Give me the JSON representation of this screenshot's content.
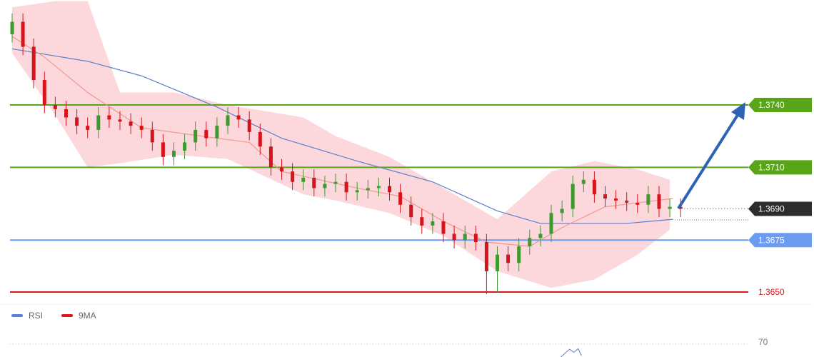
{
  "chart_data": {
    "type": "candlestick",
    "ylim": [
      1.36445,
      1.37905
    ],
    "candles": {
      "open": [
        1.3774,
        1.378,
        1.3768,
        1.3752,
        1.374,
        1.3738,
        1.3734,
        1.373,
        1.3728,
        1.3735,
        1.3733,
        1.3732,
        1.373,
        1.3728,
        1.3722,
        1.3715,
        1.3718,
        1.3722,
        1.3728,
        1.3724,
        1.373,
        1.3735,
        1.3733,
        1.3727,
        1.372,
        1.371,
        1.3708,
        1.3703,
        1.3705,
        1.37,
        1.3702,
        1.3703,
        1.3698,
        1.3699,
        1.37,
        1.3701,
        1.3698,
        1.3692,
        1.3686,
        1.3682,
        1.3684,
        1.3678,
        1.3675,
        1.3678,
        1.3674,
        1.366,
        1.3668,
        1.3664,
        1.3672,
        1.3676,
        1.3678,
        1.3688,
        1.369,
        1.3702,
        1.3704,
        1.3697,
        1.3695,
        1.3694,
        1.3693,
        1.3692,
        1.3697,
        1.369,
        1.3691
      ],
      "high": [
        1.3784,
        1.3784,
        1.3772,
        1.3756,
        1.3744,
        1.3742,
        1.3738,
        1.3734,
        1.3739,
        1.3739,
        1.3737,
        1.3736,
        1.3734,
        1.3732,
        1.3726,
        1.3722,
        1.3726,
        1.3732,
        1.3732,
        1.3734,
        1.3739,
        1.3739,
        1.3737,
        1.3731,
        1.3724,
        1.3714,
        1.3712,
        1.3709,
        1.3709,
        1.3706,
        1.3707,
        1.3707,
        1.3703,
        1.3704,
        1.3705,
        1.3705,
        1.3702,
        1.3696,
        1.369,
        1.3688,
        1.3688,
        1.3682,
        1.3682,
        1.3682,
        1.3678,
        1.3672,
        1.3672,
        1.3676,
        1.368,
        1.3682,
        1.3692,
        1.3694,
        1.3706,
        1.3708,
        1.3708,
        1.3701,
        1.3699,
        1.3698,
        1.3697,
        1.3701,
        1.3701,
        1.3695,
        1.3695
      ],
      "low": [
        1.377,
        1.3764,
        1.3748,
        1.3736,
        1.3734,
        1.373,
        1.3726,
        1.3724,
        1.3724,
        1.3729,
        1.3728,
        1.3726,
        1.3724,
        1.3718,
        1.3711,
        1.3711,
        1.3714,
        1.3718,
        1.372,
        1.372,
        1.3726,
        1.3729,
        1.3723,
        1.3716,
        1.3706,
        1.3704,
        1.3699,
        1.3699,
        1.3696,
        1.3696,
        1.3698,
        1.3694,
        1.3694,
        1.3695,
        1.3696,
        1.3694,
        1.3688,
        1.3682,
        1.3678,
        1.3678,
        1.3674,
        1.3671,
        1.3671,
        1.367,
        1.3649,
        1.365,
        1.366,
        1.366,
        1.3668,
        1.3672,
        1.3674,
        1.3684,
        1.3686,
        1.3698,
        1.3693,
        1.3691,
        1.369,
        1.3689,
        1.3688,
        1.3688,
        1.3686,
        1.3686,
        1.3686
      ],
      "close": [
        1.378,
        1.3768,
        1.3752,
        1.374,
        1.3738,
        1.3734,
        1.373,
        1.3728,
        1.3735,
        1.3733,
        1.3732,
        1.373,
        1.3728,
        1.3722,
        1.3715,
        1.3718,
        1.3722,
        1.3728,
        1.3724,
        1.373,
        1.3735,
        1.3733,
        1.3727,
        1.372,
        1.371,
        1.3708,
        1.3703,
        1.3705,
        1.37,
        1.3702,
        1.3703,
        1.3698,
        1.3699,
        1.37,
        1.3701,
        1.3698,
        1.3692,
        1.3686,
        1.3682,
        1.3684,
        1.3678,
        1.3675,
        1.3678,
        1.3674,
        1.366,
        1.3668,
        1.3664,
        1.3672,
        1.3676,
        1.3678,
        1.3688,
        1.369,
        1.3702,
        1.3704,
        1.3697,
        1.3695,
        1.3694,
        1.3693,
        1.3692,
        1.3697,
        1.369,
        1.3691,
        1.369
      ],
      "up_color": "#3c9a2e",
      "down_color": "#d6141c"
    },
    "band": {
      "x": [
        0,
        4,
        7,
        10,
        15,
        20,
        27,
        30,
        35,
        40,
        45,
        50,
        54,
        58,
        61
      ],
      "upper": [
        1.3787,
        1.379,
        1.379,
        1.3746,
        1.3746,
        1.374,
        1.3734,
        1.3725,
        1.3715,
        1.37,
        1.3685,
        1.3708,
        1.3713,
        1.3709,
        1.3704
      ],
      "lower": [
        1.3765,
        1.3735,
        1.371,
        1.3712,
        1.3716,
        1.3714,
        1.3697,
        1.3694,
        1.3688,
        1.3677,
        1.366,
        1.3652,
        1.3656,
        1.3668,
        1.368
      ],
      "color": "#fbc9cf"
    },
    "lines": [
      {
        "x": [
          0,
          7,
          12,
          19,
          25,
          32,
          39,
          45,
          49,
          57,
          61.3
        ],
        "values": [
          1.3767,
          1.3761,
          1.3754,
          1.3739,
          1.3724,
          1.3713,
          1.3703,
          1.3689,
          1.3683,
          1.3683,
          1.3685
        ],
        "color": "#5f80c9"
      },
      {
        "x": [
          0,
          3,
          7,
          12,
          19,
          22,
          25,
          32,
          36,
          40,
          44,
          48,
          51,
          55,
          61.3
        ],
        "values": [
          1.3773,
          1.3763,
          1.3746,
          1.3729,
          1.3724,
          1.3722,
          1.3708,
          1.37,
          1.3696,
          1.3684,
          1.3674,
          1.3672,
          1.3681,
          1.3691,
          1.3695
        ],
        "color": "#f19891"
      }
    ],
    "levels": [
      {
        "value": 1.374,
        "label": "1.3740",
        "color": "#58a518",
        "line": "solid",
        "label_style": "box"
      },
      {
        "value": 1.371,
        "label": "1.3710",
        "color": "#58a518",
        "line": "solid",
        "label_style": "box"
      },
      {
        "value": 1.369,
        "label": "1.3690",
        "color": "#2d2d2d",
        "line": "dotted",
        "label_style": "box"
      },
      {
        "value": 1.3675,
        "label": "1.3675",
        "color": "#6b9cf2",
        "line": "solid",
        "label_style": "box"
      },
      {
        "value": 1.365,
        "label": "1.3650",
        "color": "#e0141b",
        "line": "solid",
        "label_style": "text"
      }
    ],
    "legend": [
      {
        "name": "RSI",
        "color": "#5b7fd6"
      },
      {
        "name": "9MA",
        "color": "#e0141b"
      }
    ],
    "rsi_panel": {
      "ylim": [
        65,
        76
      ],
      "yticks": [
        70
      ],
      "x": [
        50.9,
        51.3,
        51.7,
        52.1,
        52.5,
        52.8
      ],
      "values": [
        65,
        66.5,
        68,
        66.8,
        68.2,
        65.5
      ],
      "color": "#5b7fd6"
    }
  }
}
